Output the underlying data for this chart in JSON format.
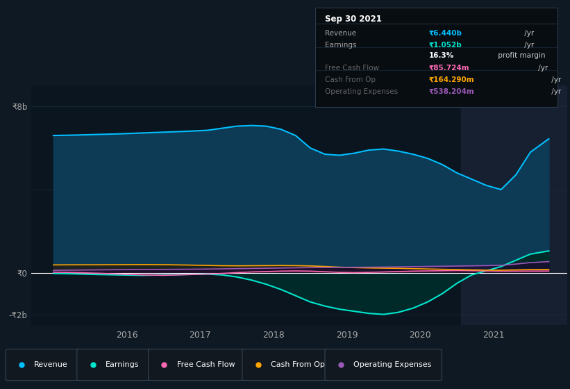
{
  "background_color": "#0e1923",
  "plot_bg_color": "#0e1923",
  "chart_bg_color": "#0a1520",
  "grid_color": "#1a2e3d",
  "zero_line_color": "#ffffff",
  "ylim": [
    -2500000000,
    9000000000
  ],
  "xlim_left": 2014.7,
  "xlim_right": 2022.0,
  "xtick_positions": [
    2016,
    2017,
    2018,
    2019,
    2020,
    2021
  ],
  "xtick_labels": [
    "2016",
    "2017",
    "2018",
    "2019",
    "2020",
    "2021"
  ],
  "ytick_positions": [
    -2000000000,
    0,
    8000000000
  ],
  "ytick_labels": [
    "-₹2b",
    "₹0",
    "₹8b"
  ],
  "highlight_x_start": 2020.55,
  "highlight_x_end": 2022.0,
  "highlight_color": "#162030",
  "revenue_color": "#00bfff",
  "revenue_fill": "#0d3a55",
  "earnings_color": "#00e5cc",
  "earnings_fill": "#002a2a",
  "fcf_color": "#ff69b4",
  "fcf_fill": "#2a0020",
  "cfop_color": "#ffa500",
  "cfop_fill": "#2a1500",
  "opex_color": "#9b59b6",
  "opex_fill": "#1e0830",
  "revenue_x": [
    2015.0,
    2015.3,
    2015.6,
    2015.9,
    2016.2,
    2016.5,
    2016.8,
    2017.1,
    2017.3,
    2017.5,
    2017.7,
    2017.9,
    2018.1,
    2018.3,
    2018.5,
    2018.7,
    2018.9,
    2019.1,
    2019.3,
    2019.5,
    2019.7,
    2019.9,
    2020.1,
    2020.3,
    2020.5,
    2020.7,
    2020.9,
    2021.1,
    2021.3,
    2021.5,
    2021.75
  ],
  "revenue_y": [
    6600000000,
    6620000000,
    6650000000,
    6680000000,
    6720000000,
    6760000000,
    6800000000,
    6850000000,
    6950000000,
    7050000000,
    7080000000,
    7050000000,
    6900000000,
    6600000000,
    6000000000,
    5700000000,
    5650000000,
    5750000000,
    5900000000,
    5950000000,
    5850000000,
    5700000000,
    5500000000,
    5200000000,
    4800000000,
    4500000000,
    4200000000,
    4000000000,
    4700000000,
    5800000000,
    6440000000
  ],
  "earnings_x": [
    2015.0,
    2015.3,
    2015.6,
    2015.9,
    2016.2,
    2016.5,
    2016.8,
    2017.1,
    2017.3,
    2017.5,
    2017.7,
    2017.9,
    2018.1,
    2018.3,
    2018.5,
    2018.7,
    2018.9,
    2019.1,
    2019.3,
    2019.5,
    2019.7,
    2019.9,
    2020.1,
    2020.3,
    2020.5,
    2020.7,
    2020.9,
    2021.1,
    2021.3,
    2021.5,
    2021.75
  ],
  "earnings_y": [
    -30000000,
    -50000000,
    -80000000,
    -100000000,
    -120000000,
    -100000000,
    -80000000,
    -60000000,
    -100000000,
    -200000000,
    -350000000,
    -550000000,
    -800000000,
    -1100000000,
    -1400000000,
    -1600000000,
    -1750000000,
    -1850000000,
    -1950000000,
    -2000000000,
    -1900000000,
    -1700000000,
    -1400000000,
    -1000000000,
    -500000000,
    -100000000,
    100000000,
    300000000,
    600000000,
    900000000,
    1052000000
  ],
  "fcf_x": [
    2015.0,
    2015.3,
    2015.6,
    2015.9,
    2016.2,
    2016.5,
    2016.8,
    2017.1,
    2017.3,
    2017.5,
    2017.7,
    2017.9,
    2018.1,
    2018.3,
    2018.5,
    2018.7,
    2018.9,
    2019.1,
    2019.3,
    2019.5,
    2019.7,
    2019.9,
    2020.1,
    2020.3,
    2020.5,
    2020.7,
    2020.9,
    2021.1,
    2021.3,
    2021.5,
    2021.75
  ],
  "fcf_y": [
    30000000,
    10000000,
    -20000000,
    -60000000,
    -100000000,
    -120000000,
    -90000000,
    -60000000,
    -30000000,
    10000000,
    40000000,
    60000000,
    80000000,
    90000000,
    80000000,
    50000000,
    20000000,
    10000000,
    20000000,
    40000000,
    60000000,
    80000000,
    90000000,
    100000000,
    110000000,
    100000000,
    90000000,
    80000000,
    82000000,
    84000000,
    85724000
  ],
  "cfop_x": [
    2015.0,
    2015.3,
    2015.6,
    2015.9,
    2016.2,
    2016.5,
    2016.8,
    2017.1,
    2017.3,
    2017.5,
    2017.7,
    2017.9,
    2018.1,
    2018.3,
    2018.5,
    2018.7,
    2018.9,
    2019.1,
    2019.3,
    2019.5,
    2019.7,
    2019.9,
    2020.1,
    2020.3,
    2020.5,
    2020.7,
    2020.9,
    2021.1,
    2021.3,
    2021.5,
    2021.75
  ],
  "cfop_y": [
    380000000,
    385000000,
    385000000,
    390000000,
    395000000,
    390000000,
    375000000,
    355000000,
    340000000,
    335000000,
    340000000,
    345000000,
    350000000,
    345000000,
    330000000,
    305000000,
    270000000,
    250000000,
    235000000,
    225000000,
    215000000,
    200000000,
    185000000,
    170000000,
    155000000,
    140000000,
    130000000,
    125000000,
    140000000,
    155000000,
    164290000
  ],
  "opex_x": [
    2015.0,
    2015.3,
    2015.6,
    2015.9,
    2016.2,
    2016.5,
    2016.8,
    2017.1,
    2017.3,
    2017.5,
    2017.7,
    2017.9,
    2018.1,
    2018.3,
    2018.5,
    2018.7,
    2018.9,
    2019.1,
    2019.3,
    2019.5,
    2019.7,
    2019.9,
    2020.1,
    2020.3,
    2020.5,
    2020.7,
    2020.9,
    2021.1,
    2021.3,
    2021.5,
    2021.75
  ],
  "opex_y": [
    120000000,
    130000000,
    140000000,
    150000000,
    160000000,
    165000000,
    170000000,
    180000000,
    190000000,
    200000000,
    210000000,
    220000000,
    230000000,
    240000000,
    250000000,
    255000000,
    260000000,
    265000000,
    270000000,
    275000000,
    285000000,
    295000000,
    305000000,
    315000000,
    325000000,
    335000000,
    345000000,
    360000000,
    420000000,
    490000000,
    538204000
  ],
  "tooltip": {
    "date": "Sep 30 2021",
    "rows": [
      {
        "label": "Revenue",
        "value": "₹6.440b",
        "unit": " /yr",
        "label_color": "#aaaaaa",
        "value_color": "#00bfff"
      },
      {
        "label": "Earnings",
        "value": "₹1.052b",
        "unit": " /yr",
        "label_color": "#aaaaaa",
        "value_color": "#00e5cc"
      },
      {
        "label": "",
        "value": "16.3%",
        "unit": " profit margin",
        "label_color": "#aaaaaa",
        "value_color": "#ffffff"
      },
      {
        "label": "Free Cash Flow",
        "value": "₹85.724m",
        "unit": " /yr",
        "label_color": "#666666",
        "value_color": "#ff69b4"
      },
      {
        "label": "Cash From Op",
        "value": "₹164.290m",
        "unit": " /yr",
        "label_color": "#666666",
        "value_color": "#ffa500"
      },
      {
        "label": "Operating Expenses",
        "value": "₹538.204m",
        "unit": " /yr",
        "label_color": "#666666",
        "value_color": "#9b59b6"
      }
    ]
  },
  "legend_items": [
    {
      "label": "Revenue",
      "color": "#00bfff"
    },
    {
      "label": "Earnings",
      "color": "#00e5cc"
    },
    {
      "label": "Free Cash Flow",
      "color": "#ff69b4"
    },
    {
      "label": "Cash From Op",
      "color": "#ffa500"
    },
    {
      "label": "Operating Expenses",
      "color": "#9b59b6"
    }
  ]
}
